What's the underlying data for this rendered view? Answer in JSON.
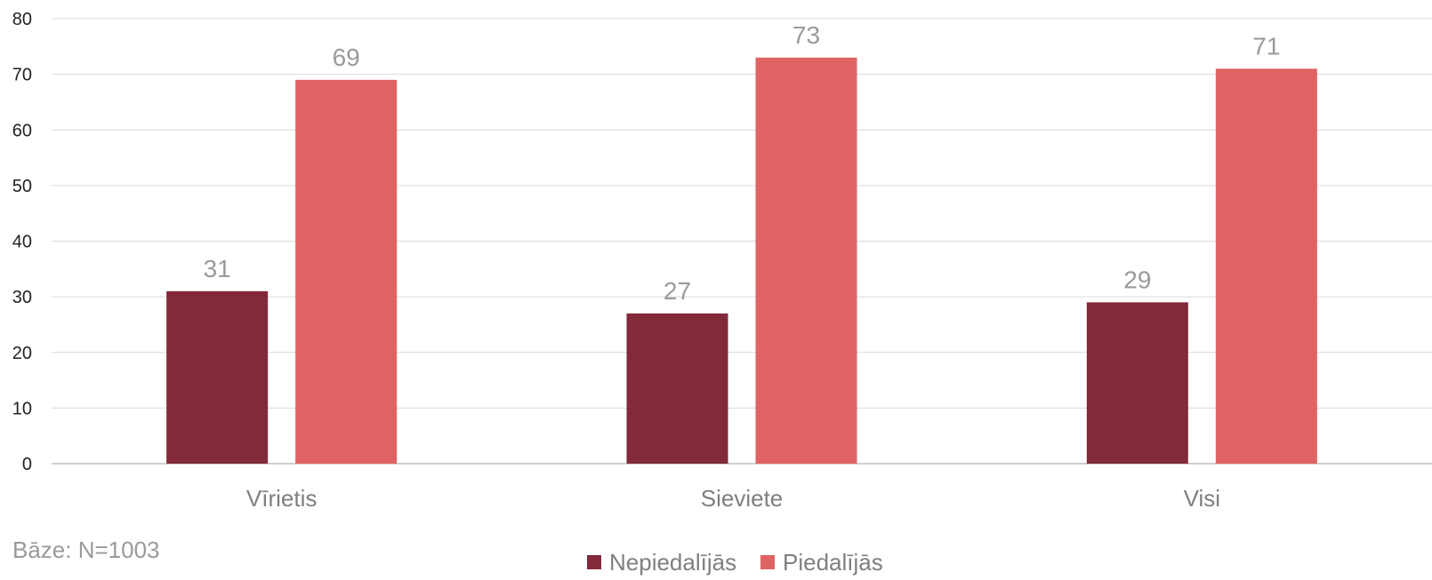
{
  "chart_data": {
    "type": "bar",
    "categories": [
      "Vīrietis",
      "Sieviete",
      "Visi"
    ],
    "series": [
      {
        "name": "Nepiedalījās",
        "values": [
          31,
          27,
          29
        ],
        "color": "#82293a"
      },
      {
        "name": "Piedalījās",
        "values": [
          69,
          73,
          71
        ],
        "color": "#e06363"
      }
    ],
    "ylim": [
      0,
      80
    ],
    "yticks": [
      0,
      10,
      20,
      30,
      40,
      50,
      60,
      70,
      80
    ],
    "grid": true,
    "legend": "bottom",
    "note": "Bāze: N=1003"
  }
}
